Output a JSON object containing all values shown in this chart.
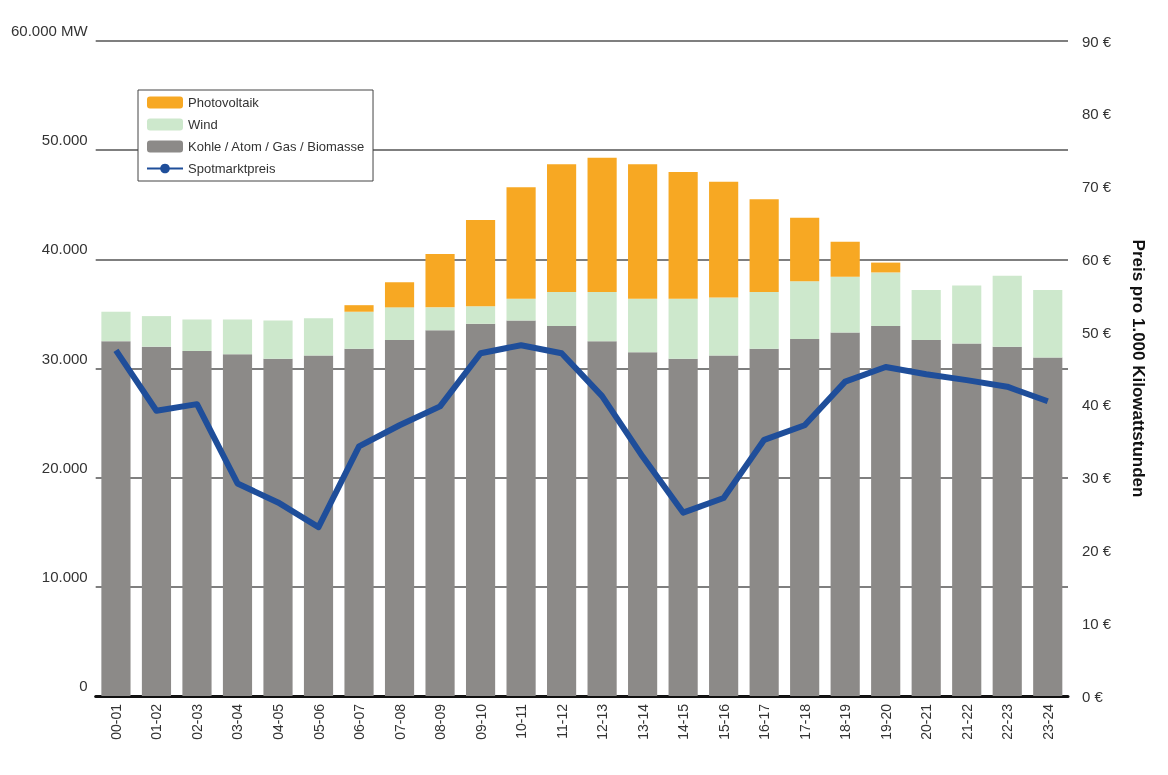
{
  "chart_data": {
    "type": "bar",
    "stacked": true,
    "categories": [
      "00-01",
      "01-02",
      "02-03",
      "03-04",
      "04-05",
      "05-06",
      "06-07",
      "07-08",
      "08-09",
      "09-10",
      "10-11",
      "11-12",
      "12-13",
      "13-14",
      "14-15",
      "15-16",
      "16-17",
      "17-18",
      "18-19",
      "19-20",
      "20-21",
      "21-22",
      "22-23",
      "23-24"
    ],
    "series": [
      {
        "name": "Kohle / Atom / Gas / Biomasse",
        "color": "#8c8a88",
        "values": [
          32500,
          32000,
          31600,
          31300,
          30900,
          31200,
          31800,
          32600,
          33500,
          34100,
          34400,
          33900,
          32500,
          31500,
          30900,
          31200,
          31800,
          32700,
          33300,
          33900,
          32600,
          32300,
          32000,
          31000
        ]
      },
      {
        "name": "Wind",
        "color": "#cde8cc",
        "values": [
          2700,
          2800,
          2900,
          3200,
          3500,
          3400,
          3400,
          3000,
          2100,
          1600,
          2000,
          3100,
          4500,
          4900,
          5500,
          5300,
          5200,
          5300,
          5100,
          4900,
          4600,
          5300,
          6500,
          6200
        ]
      },
      {
        "name": "Photovoltaik",
        "color": "#f7a823",
        "values": [
          0,
          0,
          0,
          0,
          0,
          0,
          600,
          2300,
          4900,
          7900,
          10200,
          11700,
          12300,
          12300,
          11600,
          10600,
          8500,
          5800,
          3200,
          900,
          0,
          0,
          0,
          0
        ]
      },
      {
        "name": "Spotmarktpreis",
        "type": "line",
        "axis": "y2",
        "color": "#1f4e9a",
        "values": [
          47.5,
          39.2,
          40.1,
          29.2,
          26.6,
          23.2,
          34.3,
          37.2,
          39.8,
          47.1,
          48.2,
          47.1,
          41.2,
          32.9,
          25.2,
          27.2,
          35.2,
          37.2,
          43.2,
          45.2,
          44.2,
          43.4,
          42.5,
          40.5
        ]
      }
    ],
    "ylim": [
      0,
      60000
    ],
    "yticks": [
      {
        "value": 0,
        "label": "0"
      },
      {
        "value": 10000,
        "label": "10.000"
      },
      {
        "value": 20000,
        "label": "20.000"
      },
      {
        "value": 30000,
        "label": "30.000"
      },
      {
        "value": 40000,
        "label": "40.000"
      },
      {
        "value": 50000,
        "label": "50.000"
      },
      {
        "value": 60000,
        "label": "60.000 MW"
      }
    ],
    "y2lim": [
      0,
      90
    ],
    "y2ticks": [
      {
        "value": 0,
        "label": "0 €"
      },
      {
        "value": 10,
        "label": "10 €"
      },
      {
        "value": 20,
        "label": "20 €"
      },
      {
        "value": 30,
        "label": "30 €"
      },
      {
        "value": 40,
        "label": "40 €"
      },
      {
        "value": 50,
        "label": "50 €"
      },
      {
        "value": 60,
        "label": "60 €"
      },
      {
        "value": 70,
        "label": "70 €"
      },
      {
        "value": 80,
        "label": "80 €"
      },
      {
        "value": 90,
        "label": "90 €"
      }
    ],
    "y2label": "Preis pro 1.000 Kilowattstunden",
    "grid": "y",
    "legend": "top left",
    "marker": "none"
  }
}
